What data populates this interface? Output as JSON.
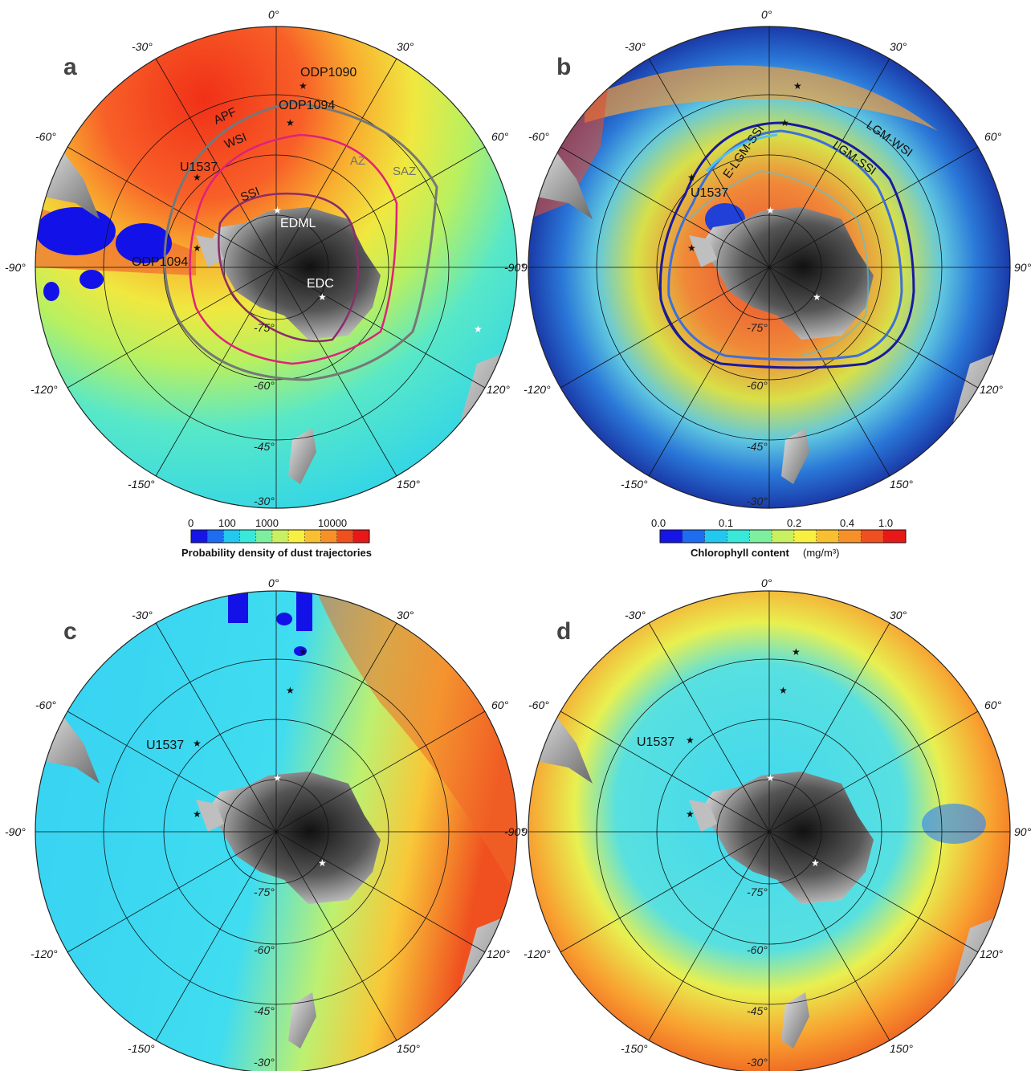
{
  "panels": [
    {
      "id": "a",
      "letter": "a",
      "background": "dust",
      "longitude_labels": [
        "0°",
        "30°",
        "60°",
        "90°",
        "120°",
        "150°",
        "-30°",
        "-60°",
        "-90°",
        "-120°",
        "-150°"
      ],
      "latitude_labels": [
        "-75°",
        "-60°",
        "-45°",
        "-30°"
      ],
      "sites": [
        {
          "name": "ODP1090",
          "marker": "black"
        },
        {
          "name": "ODP1094",
          "marker": "black"
        },
        {
          "name": "U1537",
          "marker": "black"
        },
        {
          "name": "EDML",
          "marker": "white"
        },
        {
          "name": "EDC",
          "marker": "white"
        },
        {
          "name": "ODP1094",
          "marker": "black"
        }
      ],
      "fronts": [
        {
          "name": "APF",
          "color": "#222222"
        },
        {
          "name": "WSI",
          "color": "#e0217a"
        },
        {
          "name": "SSI",
          "color": "#8b2c6b"
        },
        {
          "name": "AZ",
          "color": "#707070"
        },
        {
          "name": "SAZ",
          "color": "#707070"
        }
      ]
    },
    {
      "id": "b",
      "letter": "b",
      "background": "chlorophyll",
      "longitude_labels": [
        "0°",
        "30°",
        "60°",
        "90°",
        "120°",
        "150°",
        "-30°",
        "-60°",
        "-90°",
        "-120°",
        "-150°"
      ],
      "latitude_labels": [
        "-75°",
        "-60°",
        "-45°",
        "-30°"
      ],
      "sites": [
        {
          "name": "U1537",
          "marker": "black"
        }
      ],
      "fronts": [
        {
          "name": "E-LGM-SSI",
          "color": "#4fc3e8"
        },
        {
          "name": "LGM-SSI",
          "color": "#3f6fd8"
        },
        {
          "name": "LGM-WSI",
          "color": "#1a1aa0"
        }
      ]
    },
    {
      "id": "c",
      "letter": "c",
      "background": "cool",
      "longitude_labels": [
        "0°",
        "30°",
        "60°",
        "90°",
        "120°",
        "150°",
        "-30°",
        "-60°",
        "-90°",
        "-120°",
        "-150°"
      ],
      "latitude_labels": [
        "-75°",
        "-60°",
        "-45°",
        "-30°"
      ],
      "sites": [
        {
          "name": "U1537",
          "marker": "black"
        }
      ],
      "fronts": []
    },
    {
      "id": "d",
      "letter": "d",
      "background": "warm",
      "longitude_labels": [
        "0°",
        "30°",
        "60°",
        "90°",
        "120°",
        "150°",
        "-30°",
        "-60°",
        "-90°",
        "-120°",
        "-150°"
      ],
      "latitude_labels": [
        "-75°",
        "-60°",
        "-45°",
        "-30°"
      ],
      "sites": [
        {
          "name": "U1537",
          "marker": "black"
        }
      ],
      "fronts": []
    }
  ],
  "colorbars": [
    {
      "id": "dust",
      "title": "Probability density of dust trajectories",
      "unit": "",
      "ticks": [
        "0",
        "100",
        "1000",
        "10000"
      ],
      "colors": [
        "#1515e6",
        "#1e6cf0",
        "#22c8f0",
        "#38e8d8",
        "#7df0a0",
        "#c8f060",
        "#f8f040",
        "#f8c030",
        "#f89028",
        "#f05020",
        "#e81818"
      ]
    },
    {
      "id": "chl",
      "title": "Chlorophyll content",
      "unit": "(mg/m³)",
      "ticks": [
        "0.0",
        "0.1",
        "0.2",
        "0.4",
        "1.0"
      ],
      "colors": [
        "#1515e6",
        "#1e6cf0",
        "#22c8f0",
        "#38e8d8",
        "#7df0a0",
        "#c8f060",
        "#f8f040",
        "#f8c030",
        "#f89028",
        "#f05020",
        "#e81818"
      ]
    }
  ]
}
